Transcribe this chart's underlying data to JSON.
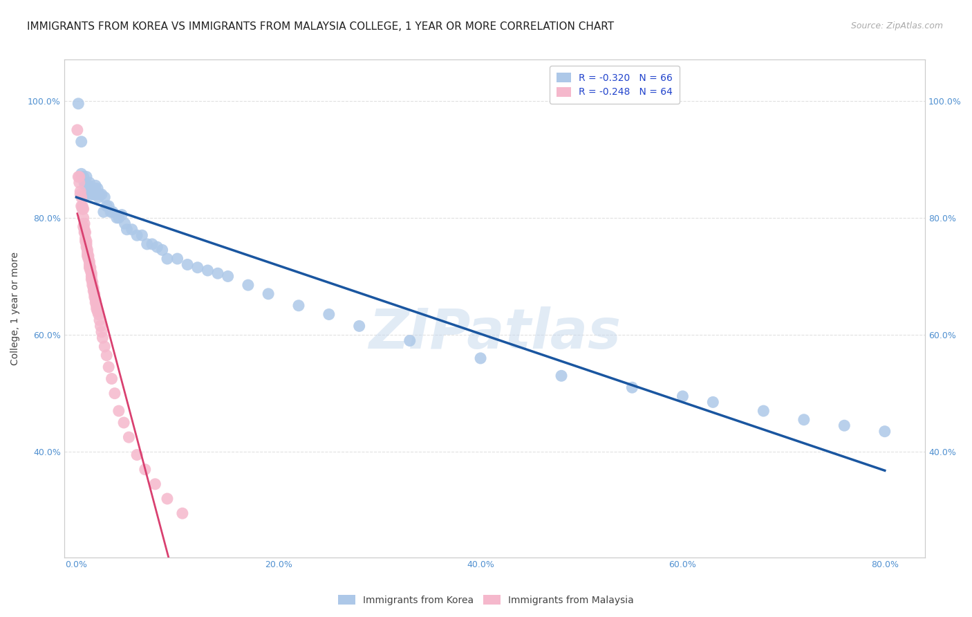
{
  "title": "IMMIGRANTS FROM KOREA VS IMMIGRANTS FROM MALAYSIA COLLEGE, 1 YEAR OR MORE CORRELATION CHART",
  "source": "Source: ZipAtlas.com",
  "ylabel": "College, 1 year or more",
  "x_tick_labels": [
    "0.0%",
    "20.0%",
    "40.0%",
    "60.0%",
    "80.0%"
  ],
  "x_tick_vals": [
    0.0,
    0.2,
    0.4,
    0.6,
    0.8
  ],
  "y_tick_labels": [
    "40.0%",
    "60.0%",
    "80.0%",
    "100.0%"
  ],
  "y_tick_vals": [
    0.4,
    0.6,
    0.8,
    1.0
  ],
  "xlim": [
    -0.012,
    0.84
  ],
  "ylim": [
    0.22,
    1.07
  ],
  "korea_R": -0.32,
  "korea_N": 66,
  "malaysia_R": -0.248,
  "malaysia_N": 64,
  "legend_label_korea": "Immigrants from Korea",
  "legend_label_malaysia": "Immigrants from Malaysia",
  "korea_color": "#adc8e8",
  "korea_line_color": "#1a56a0",
  "malaysia_color": "#f5b8cc",
  "malaysia_line_color": "#d94070",
  "malaysia_dashed_color": "#f0a0b8",
  "gray_line_color": "#cccccc",
  "background_color": "#ffffff",
  "grid_color": "#e0e0e0",
  "watermark": "ZIPatlas",
  "tick_color": "#5090d0",
  "title_fontsize": 11,
  "source_fontsize": 9,
  "ylabel_fontsize": 10,
  "tick_fontsize": 9,
  "legend_fontsize": 10,
  "korea_x": [
    0.002,
    0.005,
    0.005,
    0.007,
    0.008,
    0.009,
    0.01,
    0.01,
    0.011,
    0.012,
    0.012,
    0.013,
    0.013,
    0.014,
    0.015,
    0.015,
    0.016,
    0.017,
    0.018,
    0.018,
    0.019,
    0.02,
    0.021,
    0.022,
    0.023,
    0.025,
    0.027,
    0.028,
    0.03,
    0.032,
    0.034,
    0.036,
    0.04,
    0.042,
    0.045,
    0.048,
    0.05,
    0.055,
    0.06,
    0.065,
    0.07,
    0.075,
    0.08,
    0.085,
    0.09,
    0.1,
    0.11,
    0.12,
    0.13,
    0.14,
    0.15,
    0.17,
    0.19,
    0.22,
    0.25,
    0.28,
    0.33,
    0.4,
    0.48,
    0.55,
    0.6,
    0.63,
    0.68,
    0.72,
    0.76,
    0.8
  ],
  "korea_y": [
    0.995,
    0.93,
    0.875,
    0.87,
    0.86,
    0.855,
    0.87,
    0.855,
    0.84,
    0.855,
    0.845,
    0.86,
    0.85,
    0.845,
    0.84,
    0.845,
    0.84,
    0.84,
    0.845,
    0.85,
    0.855,
    0.84,
    0.85,
    0.835,
    0.84,
    0.84,
    0.81,
    0.835,
    0.82,
    0.82,
    0.81,
    0.81,
    0.8,
    0.8,
    0.805,
    0.79,
    0.78,
    0.78,
    0.77,
    0.77,
    0.755,
    0.755,
    0.75,
    0.745,
    0.73,
    0.73,
    0.72,
    0.715,
    0.71,
    0.705,
    0.7,
    0.685,
    0.67,
    0.65,
    0.635,
    0.615,
    0.59,
    0.56,
    0.53,
    0.51,
    0.495,
    0.485,
    0.47,
    0.455,
    0.445,
    0.435
  ],
  "malaysia_x": [
    0.001,
    0.002,
    0.003,
    0.003,
    0.004,
    0.004,
    0.005,
    0.005,
    0.006,
    0.006,
    0.007,
    0.007,
    0.007,
    0.008,
    0.008,
    0.008,
    0.009,
    0.009,
    0.009,
    0.01,
    0.01,
    0.01,
    0.011,
    0.011,
    0.011,
    0.012,
    0.012,
    0.013,
    0.013,
    0.013,
    0.014,
    0.014,
    0.015,
    0.015,
    0.015,
    0.016,
    0.016,
    0.017,
    0.017,
    0.018,
    0.018,
    0.019,
    0.019,
    0.02,
    0.02,
    0.021,
    0.022,
    0.023,
    0.024,
    0.025,
    0.026,
    0.028,
    0.03,
    0.032,
    0.035,
    0.038,
    0.042,
    0.047,
    0.052,
    0.06,
    0.068,
    0.078,
    0.09,
    0.105
  ],
  "malaysia_y": [
    0.95,
    0.87,
    0.87,
    0.86,
    0.845,
    0.84,
    0.835,
    0.82,
    0.82,
    0.815,
    0.815,
    0.8,
    0.785,
    0.79,
    0.78,
    0.775,
    0.775,
    0.765,
    0.76,
    0.76,
    0.755,
    0.75,
    0.745,
    0.74,
    0.735,
    0.73,
    0.735,
    0.725,
    0.72,
    0.715,
    0.715,
    0.71,
    0.705,
    0.7,
    0.695,
    0.69,
    0.685,
    0.68,
    0.675,
    0.67,
    0.665,
    0.66,
    0.655,
    0.65,
    0.645,
    0.64,
    0.635,
    0.625,
    0.615,
    0.605,
    0.595,
    0.58,
    0.565,
    0.545,
    0.525,
    0.5,
    0.47,
    0.45,
    0.425,
    0.395,
    0.37,
    0.345,
    0.32,
    0.295
  ]
}
